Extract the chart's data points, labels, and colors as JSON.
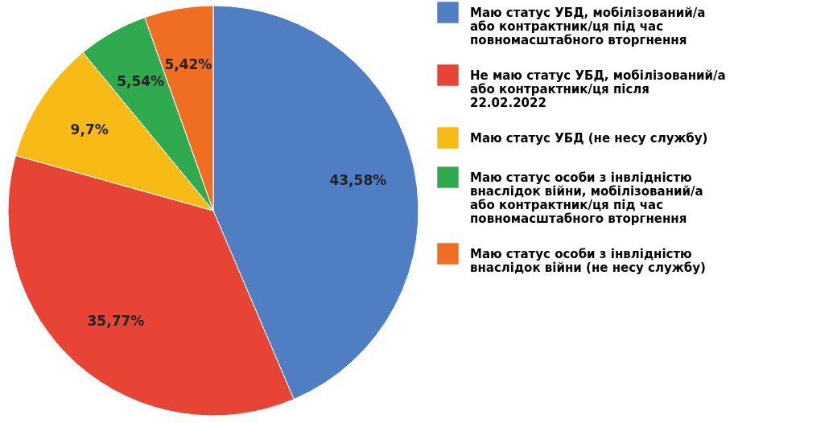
{
  "chart_data": {
    "type": "pie",
    "categories": [
      "Маю статус УБД, мобілізований/а або контрактник/ця під час повномасштабного вторгнення",
      "Не маю статус УБД, мобілізований/а або контрактник/ця після 22.02.2022",
      "Маю статус УБД (не несу службу)",
      "Маю статус особи з інвлідністю внаслідок війни, мобілізований/а або контрактник/ця під час повномасштабного вторгнення",
      "Маю статус особи з інвлідністю внаслідок війни (не несу службу)"
    ],
    "values": [
      43.58,
      35.77,
      9.7,
      5.54,
      5.42
    ],
    "colors": [
      "#4f7ec2",
      "#e84436",
      "#f8bb16",
      "#2faa4f",
      "#f06e22"
    ],
    "value_labels": [
      "43,58%",
      "35,77%",
      "9,7%",
      "5,54%",
      "5,42%"
    ],
    "legend": "right"
  }
}
